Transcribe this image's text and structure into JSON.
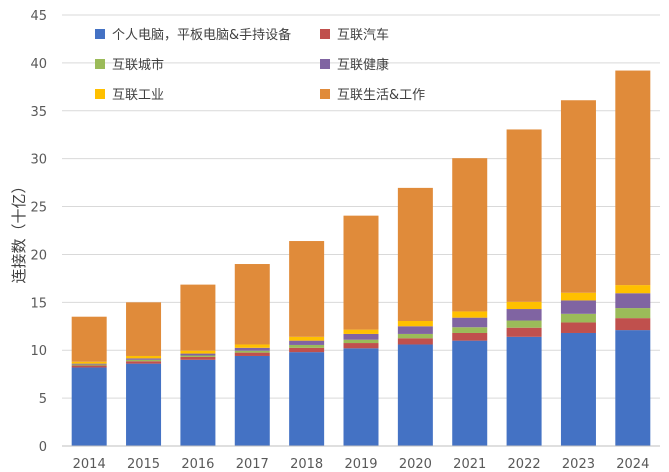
{
  "chart_data": {
    "type": "bar",
    "stacked": true,
    "title": "",
    "xlabel": "",
    "ylabel": "连接数（十亿）",
    "ylim": [
      0,
      45
    ],
    "yticks": [
      0,
      5,
      10,
      15,
      20,
      25,
      30,
      35,
      40,
      45
    ],
    "grid": true,
    "legend_position": "top-left",
    "categories": [
      "2014",
      "2015",
      "2016",
      "2017",
      "2018",
      "2019",
      "2020",
      "2021",
      "2022",
      "2023",
      "2024"
    ],
    "series": [
      {
        "name": "个人电脑，平板电脑&手持设备",
        "color": "#4472C4",
        "values": [
          8.2,
          8.6,
          9.0,
          9.4,
          9.8,
          10.2,
          10.6,
          11.0,
          11.4,
          11.8,
          12.1
        ]
      },
      {
        "name": "互联汽车",
        "color": "#C0504D",
        "values": [
          0.2,
          0.25,
          0.3,
          0.35,
          0.45,
          0.55,
          0.65,
          0.8,
          0.95,
          1.1,
          1.25
        ]
      },
      {
        "name": "互联城市",
        "color": "#9BBB59",
        "values": [
          0.1,
          0.15,
          0.15,
          0.2,
          0.3,
          0.35,
          0.45,
          0.6,
          0.75,
          0.9,
          1.05
        ]
      },
      {
        "name": "互联健康",
        "color": "#8064A2",
        "values": [
          0.1,
          0.15,
          0.2,
          0.3,
          0.45,
          0.6,
          0.8,
          1.0,
          1.2,
          1.4,
          1.55
        ]
      },
      {
        "name": "互联工业",
        "color": "#FFC000",
        "values": [
          0.2,
          0.25,
          0.3,
          0.35,
          0.4,
          0.45,
          0.55,
          0.65,
          0.75,
          0.8,
          0.85
        ]
      },
      {
        "name": "互联生活&工作",
        "color": "#E08B3A",
        "values": [
          4.7,
          5.6,
          6.9,
          8.4,
          10.0,
          11.9,
          13.9,
          16.0,
          18.0,
          20.1,
          22.4
        ]
      }
    ]
  }
}
